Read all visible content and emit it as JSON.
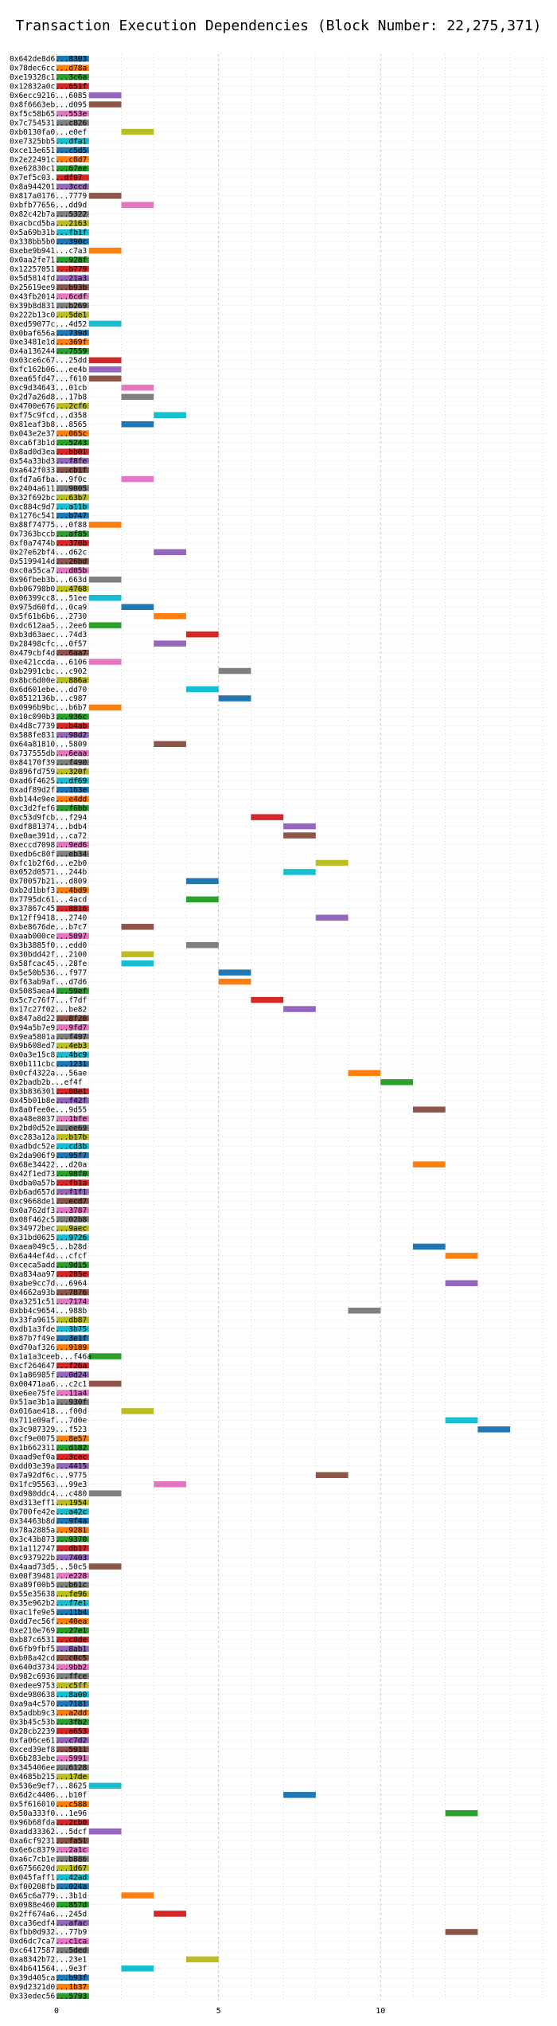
{
  "chart_data": {
    "type": "bar",
    "title": "Transaction Execution Dependencies (Block Number: 22,275,371)",
    "xlabel": "",
    "ylabel": "",
    "xlim": [
      -1.5,
      15.2
    ],
    "x_ticks": [
      0,
      5,
      10
    ],
    "grid": "x-dotted and y-dotted",
    "palette": {
      "blue": "#1f77b4",
      "orange": "#ff7f0e",
      "green": "#2ca02c",
      "red": "#d62728",
      "purple": "#9467bd",
      "brown": "#8c564b",
      "pink": "#e377c2",
      "gray": "#7f7f7f",
      "olive": "#bcbd22",
      "cyan": "#17becf"
    },
    "transactions": [
      [
        "0x642de8d6...8303",
        0,
        "blue"
      ],
      [
        "0x78dec6cc...d78a",
        0,
        "orange"
      ],
      [
        "0xe19328c1...3c6a",
        0,
        "green"
      ],
      [
        "0x12832a0c...651f",
        0,
        "red"
      ],
      [
        "0x6ecc9216...6085",
        1,
        "purple"
      ],
      [
        "0x8f6663eb...d095",
        1,
        "brown"
      ],
      [
        "0xf5c58b65...553e",
        0,
        "pink"
      ],
      [
        "0x7c754531...c826",
        0,
        "gray"
      ],
      [
        "0xb0130fa0...e0ef",
        2,
        "olive"
      ],
      [
        "0xe7325bb5...dfa1",
        0,
        "cyan"
      ],
      [
        "0xce13e651...c5d5",
        0,
        "blue"
      ],
      [
        "0x2e22491c...c8d7",
        0,
        "orange"
      ],
      [
        "0xe62830c1...67ee",
        0,
        "green"
      ],
      [
        "0x7ef5c03...df07",
        0,
        "red"
      ],
      [
        "0x8a944201...3ccd",
        0,
        "purple"
      ],
      [
        "0x817a0176...7779",
        1,
        "brown"
      ],
      [
        "0xbfb77656...dd9d",
        2,
        "pink"
      ],
      [
        "0x82c42b7a...5322",
        0,
        "gray"
      ],
      [
        "0xacbcd5ba...2163",
        0,
        "olive"
      ],
      [
        "0x5a69b31b...fb1f",
        0,
        "cyan"
      ],
      [
        "0x338bb5b0...390c",
        0,
        "blue"
      ],
      [
        "0xebe9b941...c7a3",
        1,
        "orange"
      ],
      [
        "0x0aa2fe71...928f",
        0,
        "green"
      ],
      [
        "0x12257051...b779",
        0,
        "red"
      ],
      [
        "0x5d5814fd...21a3",
        0,
        "purple"
      ],
      [
        "0x25619ee9...b93b",
        0,
        "brown"
      ],
      [
        "0x43fb2014...6cdf",
        0,
        "pink"
      ],
      [
        "0x39b8d831...b269",
        0,
        "gray"
      ],
      [
        "0x222b13c0...5de1",
        0,
        "olive"
      ],
      [
        "0xed59077c...4d52",
        1,
        "cyan"
      ],
      [
        "0x0baf656a...739d",
        0,
        "blue"
      ],
      [
        "0xe3481e1d...369f",
        0,
        "orange"
      ],
      [
        "0x4a136244...7559",
        0,
        "green"
      ],
      [
        "0x03ce6c67...25dd",
        1,
        "red"
      ],
      [
        "0xfc162b06...ee4b",
        1,
        "purple"
      ],
      [
        "0xea65fd47...f610",
        1,
        "brown"
      ],
      [
        "0xc9d34643...01cb",
        2,
        "pink"
      ],
      [
        "0x2d7a26d8...17b8",
        2,
        "gray"
      ],
      [
        "0x4700e676...2cf6",
        0,
        "olive"
      ],
      [
        "0xf75c9fcd...d358",
        3,
        "cyan"
      ],
      [
        "0x81eaf3b8...8565",
        2,
        "blue"
      ],
      [
        "0x043e2e37...065c",
        0,
        "orange"
      ],
      [
        "0xca6f3b1d...5243",
        0,
        "green"
      ],
      [
        "0x8ad0d3ea...bb01",
        0,
        "red"
      ],
      [
        "0x54a33bd3...f8fe",
        0,
        "purple"
      ],
      [
        "0xa642f033...cb1f",
        0,
        "brown"
      ],
      [
        "0xfd7a6fba...9f0c",
        2,
        "pink"
      ],
      [
        "0x2404a611...9005",
        0,
        "gray"
      ],
      [
        "0x32f692bc...63b7",
        0,
        "olive"
      ],
      [
        "0xc884c9d7...a11b",
        0,
        "cyan"
      ],
      [
        "0x1276c541...b747",
        0,
        "blue"
      ],
      [
        "0x88f74775...0f88",
        1,
        "orange"
      ],
      [
        "0x7363bccb...af85",
        0,
        "green"
      ],
      [
        "0xf0a7474b...370b",
        0,
        "red"
      ],
      [
        "0x27e62bf4...d62c",
        3,
        "purple"
      ],
      [
        "0x5199414d...26bd",
        0,
        "brown"
      ],
      [
        "0xc0a55ca7...d05b",
        0,
        "pink"
      ],
      [
        "0x96fbeb3b...663d",
        1,
        "gray"
      ],
      [
        "0xb06798b0...4768",
        0,
        "olive"
      ],
      [
        "0x06399cc8...51ee",
        1,
        "cyan"
      ],
      [
        "0x975d60fd...0ca9",
        2,
        "blue"
      ],
      [
        "0x5f61b6b6...2730",
        3,
        "orange"
      ],
      [
        "0xdc612aa5...2ee6",
        1,
        "green"
      ],
      [
        "0xb3d63aec...74d3",
        4,
        "red"
      ],
      [
        "0x28498cfc...0f57",
        3,
        "purple"
      ],
      [
        "0x479cbf4d...6aa7",
        0,
        "brown"
      ],
      [
        "0xe421ccda...6106",
        1,
        "pink"
      ],
      [
        "0xb2991cbc...c902",
        5,
        "gray"
      ],
      [
        "0x8bc6d00e...886a",
        0,
        "olive"
      ],
      [
        "0x6d601ebe...dd70",
        4,
        "cyan"
      ],
      [
        "0x8512136b...c987",
        5,
        "blue"
      ],
      [
        "0x0996b9bc...b6b7",
        1,
        "orange"
      ],
      [
        "0x10c090b3...936c",
        0,
        "green"
      ],
      [
        "0x4d8c7739...b4ab",
        0,
        "red"
      ],
      [
        "0x588fe831...98d2",
        0,
        "purple"
      ],
      [
        "0x64a81810...5809",
        3,
        "brown"
      ],
      [
        "0x737555db...6eaa",
        0,
        "pink"
      ],
      [
        "0x84170f39...f490",
        0,
        "gray"
      ],
      [
        "0x896fd759...320f",
        0,
        "olive"
      ],
      [
        "0xad6f4625...df69",
        0,
        "cyan"
      ],
      [
        "0xadf89d2f...163e",
        0,
        "blue"
      ],
      [
        "0xb144e9ee...e4dd",
        0,
        "orange"
      ],
      [
        "0xc3d2fef6...f6bb",
        0,
        "green"
      ],
      [
        "0xc53d9fcb...f294",
        6,
        "red"
      ],
      [
        "0xdf881374...bdb4",
        7,
        "purple"
      ],
      [
        "0xe0ae391d...ca72",
        7,
        "brown"
      ],
      [
        "0xeccd7098...9ed6",
        0,
        "pink"
      ],
      [
        "0xedb6c80f...eb34",
        0,
        "gray"
      ],
      [
        "0xfc1b2f6d...e2b0",
        8,
        "olive"
      ],
      [
        "0x052d0571...244b",
        7,
        "cyan"
      ],
      [
        "0x70057b21...d809",
        4,
        "blue"
      ],
      [
        "0xb2d1bbf3...4bd9",
        0,
        "orange"
      ],
      [
        "0x7795dc61...4acd",
        4,
        "green"
      ],
      [
        "0x37867c45...8816",
        0,
        "red"
      ],
      [
        "0x12ff9418...2740",
        8,
        "purple"
      ],
      [
        "0xbe8676de...b7c7",
        2,
        "brown"
      ],
      [
        "0xaab000ce...5097",
        0,
        "pink"
      ],
      [
        "0x3b3885f0...edd0",
        4,
        "gray"
      ],
      [
        "0x30bdd42f...2100",
        2,
        "olive"
      ],
      [
        "0x58fcac45...28fe",
        2,
        "cyan"
      ],
      [
        "0x5e50b536...f977",
        5,
        "blue"
      ],
      [
        "0xf63ab9af...d7d6",
        5,
        "orange"
      ],
      [
        "0x5085aea4...59ef",
        0,
        "green"
      ],
      [
        "0x5c7c76f7...f7df",
        6,
        "red"
      ],
      [
        "0x17c27f02...be82",
        7,
        "purple"
      ],
      [
        "0x847a8d22...8f20",
        0,
        "brown"
      ],
      [
        "0x94a5b7e9...9fd7",
        0,
        "pink"
      ],
      [
        "0x9ea5801a...f497",
        0,
        "gray"
      ],
      [
        "0x9b608ed7...4eb3",
        0,
        "olive"
      ],
      [
        "0x0a3e15c8...4bc9",
        0,
        "cyan"
      ],
      [
        "0x0b111cbc...1231",
        0,
        "blue"
      ],
      [
        "0x0cf4322a...56ae",
        9,
        "orange"
      ],
      [
        "0x2badb2b...ef4f",
        10,
        "green"
      ],
      [
        "0x3b836301...00e1",
        0,
        "red"
      ],
      [
        "0x45b01b8e...f42f",
        0,
        "purple"
      ],
      [
        "0x8a0fee0e...9d55",
        11,
        "brown"
      ],
      [
        "0xa48e8037...1bfe",
        0,
        "pink"
      ],
      [
        "0x2bd0d52e...ee69",
        0,
        "gray"
      ],
      [
        "0xc283a12a...b17b",
        0,
        "olive"
      ],
      [
        "0xadbdc52e...cd3b",
        0,
        "cyan"
      ],
      [
        "0x2da906f9...95f7",
        0,
        "blue"
      ],
      [
        "0x68e34422...d20a",
        11,
        "orange"
      ],
      [
        "0x42f1ed73...98f0",
        0,
        "green"
      ],
      [
        "0xdba0a57b...fb1a",
        0,
        "red"
      ],
      [
        "0xb6ad657d...f1f1",
        0,
        "purple"
      ],
      [
        "0xc9668de1...ecd7",
        0,
        "brown"
      ],
      [
        "0x0a762df3...3787",
        0,
        "pink"
      ],
      [
        "0x08f462c5...02b8",
        0,
        "gray"
      ],
      [
        "0x34972bec...9aec",
        0,
        "olive"
      ],
      [
        "0x31bd0625...9726",
        0,
        "cyan"
      ],
      [
        "0xaea049c5...b28d",
        11,
        "blue"
      ],
      [
        "0x6a44ef4d...cfcf",
        12,
        "orange"
      ],
      [
        "0xceca5add...9d15",
        0,
        "green"
      ],
      [
        "0xa834aa97...285e",
        0,
        "red"
      ],
      [
        "0xabe9cc7d...6964",
        12,
        "purple"
      ],
      [
        "0x4662a93b...7876",
        0,
        "brown"
      ],
      [
        "0xa3251c51...7174",
        0,
        "pink"
      ],
      [
        "0xbb4c9654...988b",
        9,
        "gray"
      ],
      [
        "0x33fa9615...db87",
        0,
        "olive"
      ],
      [
        "0xdb1a3fde...3b75",
        0,
        "cyan"
      ],
      [
        "0x87b7f49e...3e1f",
        0,
        "blue"
      ],
      [
        "0xd70af326...9189",
        0,
        "orange"
      ],
      [
        "0x1a1a3ceeb...f46a",
        1,
        "green"
      ],
      [
        "0xcf264647...f26a",
        0,
        "red"
      ],
      [
        "0x1a86985f...0d24",
        0,
        "purple"
      ],
      [
        "0x00471aa6...c2c1",
        1,
        "brown"
      ],
      [
        "0xe6ee75fe...11a4",
        0,
        "pink"
      ],
      [
        "0x51ae3b1a...930f",
        0,
        "gray"
      ],
      [
        "0x016ae418...f00d",
        2,
        "olive"
      ],
      [
        "0x711e09af...7d0e",
        12,
        "cyan"
      ],
      [
        "0x3c987329...f523",
        13,
        "blue"
      ],
      [
        "0xcf9e0075...8e57",
        0,
        "orange"
      ],
      [
        "0x1b662311...d182",
        0,
        "green"
      ],
      [
        "0xaad9ef0a...3cec",
        0,
        "red"
      ],
      [
        "0xdd03e39a...4415",
        0,
        "purple"
      ],
      [
        "0x7a92df6c...9775",
        8,
        "brown"
      ],
      [
        "0x1fc95563...99e3",
        3,
        "pink"
      ],
      [
        "0xd980ddc4...c480",
        1,
        "gray"
      ],
      [
        "0xd313eff1...1954",
        0,
        "olive"
      ],
      [
        "0x700fe42e...a42c",
        0,
        "cyan"
      ],
      [
        "0x34463b8d...9f4a",
        0,
        "blue"
      ],
      [
        "0x78a2885a...9281",
        0,
        "orange"
      ],
      [
        "0x3c43b873...9370",
        0,
        "green"
      ],
      [
        "0x1a112747...db17",
        0,
        "red"
      ],
      [
        "0xc937922b...7403",
        0,
        "purple"
      ],
      [
        "0x4aad73d5...50c5",
        1,
        "brown"
      ],
      [
        "0x00f39481...e228",
        0,
        "pink"
      ],
      [
        "0xa89f00b5...b61c",
        0,
        "gray"
      ],
      [
        "0x55e35638...fe96",
        0,
        "olive"
      ],
      [
        "0x35e962b2...f7e1",
        0,
        "cyan"
      ],
      [
        "0xac1fe9e5...11b4",
        0,
        "blue"
      ],
      [
        "0xdd7ec56f...40ea",
        0,
        "orange"
      ],
      [
        "0xe210e769...27e1",
        0,
        "green"
      ],
      [
        "0xb87c6531...c0de",
        0,
        "red"
      ],
      [
        "0x6fb9fbf5...8ab1",
        0,
        "purple"
      ],
      [
        "0xb08a42cd...c0c5",
        0,
        "brown"
      ],
      [
        "0x640d3734...9bb2",
        0,
        "pink"
      ],
      [
        "0x982c6936...ffce",
        0,
        "gray"
      ],
      [
        "0xedee9753...c5ff",
        0,
        "olive"
      ],
      [
        "0xde980638...8a00",
        0,
        "cyan"
      ],
      [
        "0xa9a4c570...7181",
        0,
        "blue"
      ],
      [
        "0x5adbb9c3...a2dd",
        0,
        "orange"
      ],
      [
        "0x3b45c53b...3fb2",
        0,
        "green"
      ],
      [
        "0x28cb2239...a653",
        0,
        "red"
      ],
      [
        "0xfa06ce61...c7d2",
        0,
        "purple"
      ],
      [
        "0xced39ef8...5911",
        0,
        "brown"
      ],
      [
        "0x6b283ebe...5991",
        0,
        "pink"
      ],
      [
        "0x345406ee...6128",
        0,
        "gray"
      ],
      [
        "0x4685b215...17de",
        0,
        "olive"
      ],
      [
        "0x536e9ef7...8625",
        1,
        "cyan"
      ],
      [
        "0x6d2c4406...b10f",
        7,
        "blue"
      ],
      [
        "0x5f616010...c588",
        0,
        "orange"
      ],
      [
        "0x50a333f0...1e96",
        12,
        "green"
      ],
      [
        "0x96b68fda...2cb0",
        0,
        "red"
      ],
      [
        "0xadd33362...5dcf",
        1,
        "purple"
      ],
      [
        "0xa6cf9231...fa51",
        0,
        "brown"
      ],
      [
        "0x6e6c8379...2a1c",
        0,
        "pink"
      ],
      [
        "0xa6c7cb1e...b886",
        0,
        "gray"
      ],
      [
        "0x6756620d...1d67",
        0,
        "olive"
      ],
      [
        "0x045faff1...42ad",
        0,
        "cyan"
      ],
      [
        "0xf00208fb...024a",
        0,
        "blue"
      ],
      [
        "0x65c6a779...3b1d",
        2,
        "orange"
      ],
      [
        "0x0988e460...857d",
        0,
        "green"
      ],
      [
        "0x2ff674a6...245d",
        3,
        "red"
      ],
      [
        "0xca36edf4...afac",
        0,
        "purple"
      ],
      [
        "0xfbb0d932...77b9",
        12,
        "brown"
      ],
      [
        "0xd6dc7ca7...c1ca",
        0,
        "pink"
      ],
      [
        "0xc6417587...5ded",
        0,
        "gray"
      ],
      [
        "0xa8342b72...23e1",
        4,
        "olive"
      ],
      [
        "0x4b641564...9e3f",
        2,
        "cyan"
      ],
      [
        "0x39d405ca...b93f",
        0,
        "blue"
      ],
      [
        "0x9d2321d0...1b37",
        0,
        "orange"
      ],
      [
        "0x33edec56...5793",
        0,
        "green"
      ]
    ]
  }
}
